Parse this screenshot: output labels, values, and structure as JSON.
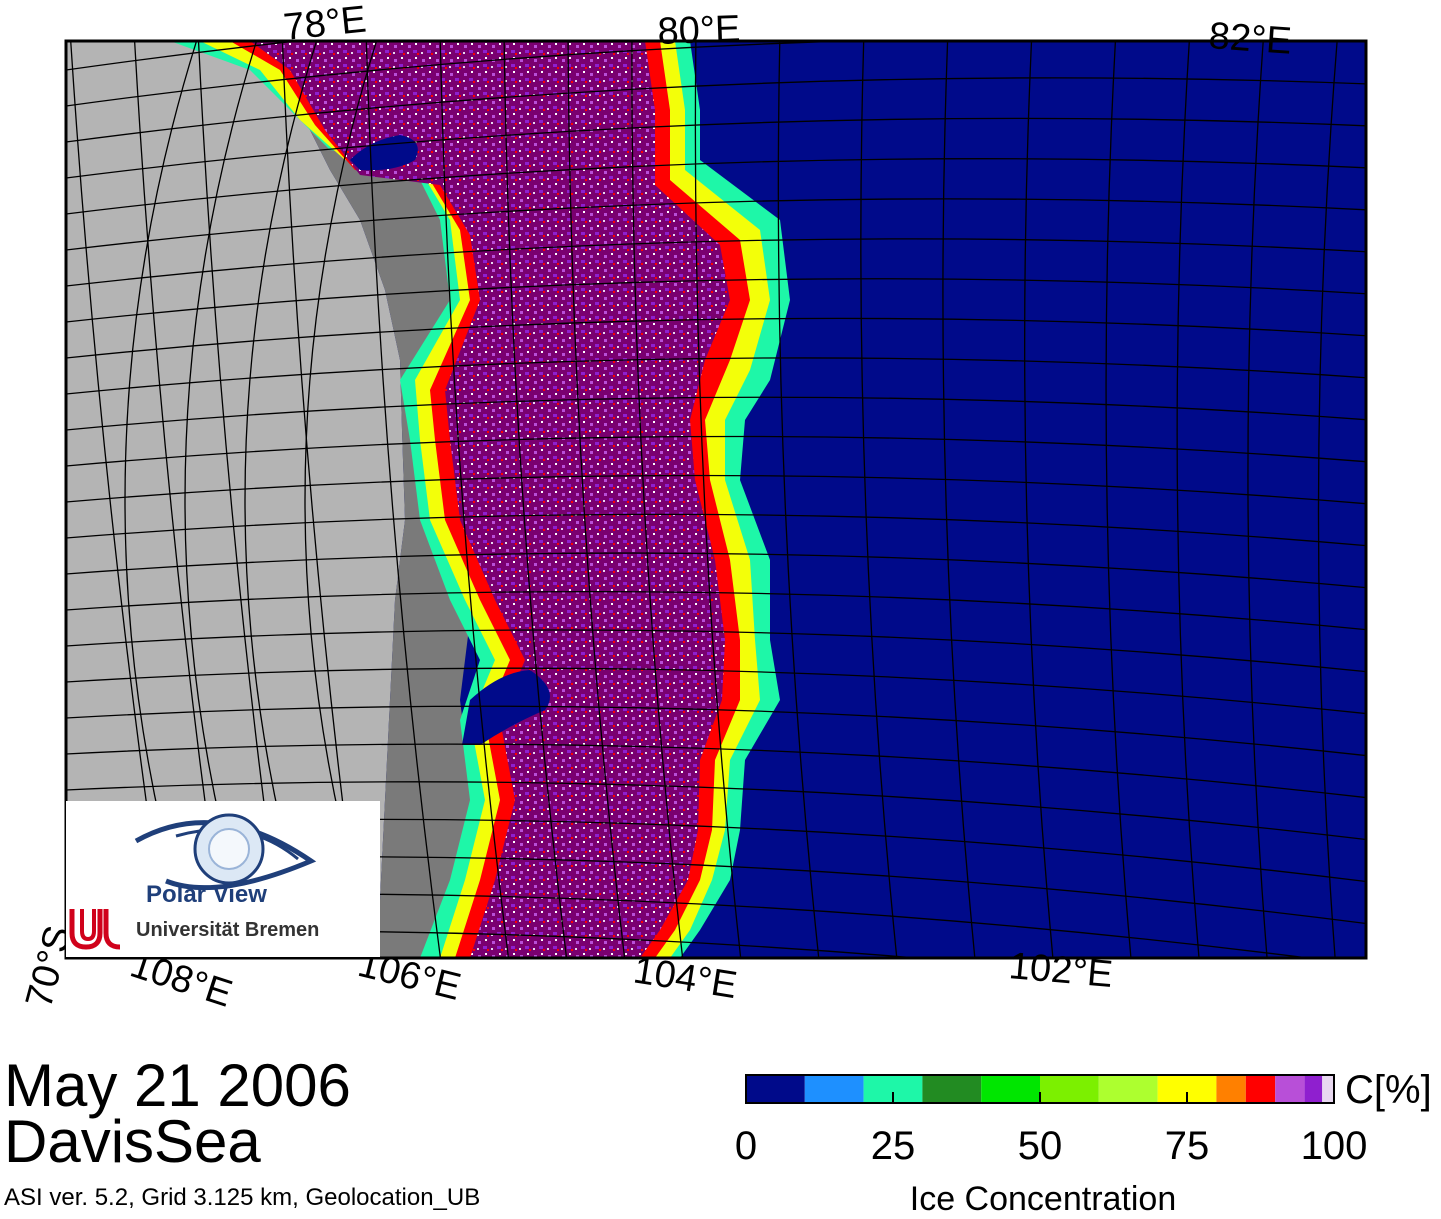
{
  "map": {
    "region": "DavisSea",
    "date": "May 21 2006",
    "info": "ASI ver. 5.2,  Grid 3.125 km, Geolocation_UB",
    "top_labels": [
      "78°E",
      "80°E",
      "82°E"
    ],
    "bottom_labels": [
      "70°S",
      "108°E",
      "106°E",
      "104°E",
      "102°E"
    ],
    "colors": {
      "open_water": "#000a8a",
      "land": "#b4b4b4",
      "ice_shelf": "#7a7a7a",
      "ice_dense": "#7a0070"
    }
  },
  "legend": {
    "title": "Ice Concentration",
    "unit": "C[%]",
    "ticks": [
      "0",
      "25",
      "50",
      "75",
      "100"
    ],
    "bins": [
      {
        "from": 0,
        "to": 10,
        "color": "#000a8a"
      },
      {
        "from": 10,
        "to": 20,
        "color": "#1e90ff"
      },
      {
        "from": 20,
        "to": 30,
        "color": "#1ef7a8"
      },
      {
        "from": 30,
        "to": 40,
        "color": "#228b22"
      },
      {
        "from": 40,
        "to": 50,
        "color": "#00e600"
      },
      {
        "from": 50,
        "to": 60,
        "color": "#7cf000"
      },
      {
        "from": 60,
        "to": 70,
        "color": "#adff2f"
      },
      {
        "from": 70,
        "to": 80,
        "color": "#ffff00"
      },
      {
        "from": 80,
        "to": 85,
        "color": "#ff8000"
      },
      {
        "from": 85,
        "to": 90,
        "color": "#ff0000"
      },
      {
        "from": 90,
        "to": 95,
        "color": "#b84fd8"
      },
      {
        "from": 95,
        "to": 98,
        "color": "#8f1fcf"
      },
      {
        "from": 98,
        "to": 100,
        "color": "#e8d8f0"
      }
    ]
  },
  "logo": {
    "name": "Polar View",
    "institution": "Universität Bremen",
    "icon": "eye-globe-logo"
  }
}
